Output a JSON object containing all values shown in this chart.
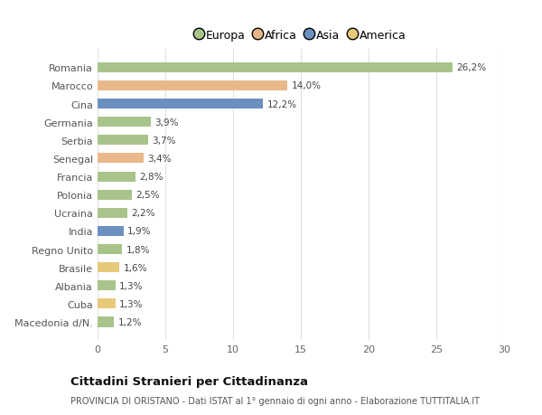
{
  "categories": [
    "Macedonia d/N.",
    "Cuba",
    "Albania",
    "Brasile",
    "Regno Unito",
    "India",
    "Ucraina",
    "Polonia",
    "Francia",
    "Senegal",
    "Serbia",
    "Germania",
    "Cina",
    "Marocco",
    "Romania"
  ],
  "values": [
    1.2,
    1.3,
    1.3,
    1.6,
    1.8,
    1.9,
    2.2,
    2.5,
    2.8,
    3.4,
    3.7,
    3.9,
    12.2,
    14.0,
    26.2
  ],
  "labels": [
    "1,2%",
    "1,3%",
    "1,3%",
    "1,6%",
    "1,8%",
    "1,9%",
    "2,2%",
    "2,5%",
    "2,8%",
    "3,4%",
    "3,7%",
    "3,9%",
    "12,2%",
    "14,0%",
    "26,2%"
  ],
  "colors": [
    "#a8c48a",
    "#e8c97a",
    "#a8c48a",
    "#e8c97a",
    "#a8c48a",
    "#6b8fbf",
    "#a8c48a",
    "#a8c48a",
    "#a8c48a",
    "#e8b88a",
    "#a8c48a",
    "#a8c48a",
    "#6b8fbf",
    "#e8b88a",
    "#a8c48a"
  ],
  "legend": {
    "Europa": "#a8c48a",
    "Africa": "#e8b88a",
    "Asia": "#6b8fbf",
    "America": "#e8c97a"
  },
  "title": "Cittadini Stranieri per Cittadinanza",
  "subtitle": "PROVINCIA DI ORISTANO - Dati ISTAT al 1° gennaio di ogni anno - Elaborazione TUTTITALIA.IT",
  "xlim": [
    0,
    30
  ],
  "xticks": [
    0,
    5,
    10,
    15,
    20,
    25,
    30
  ],
  "background_color": "#ffffff",
  "grid_color": "#e0e0e0",
  "bar_height": 0.55
}
